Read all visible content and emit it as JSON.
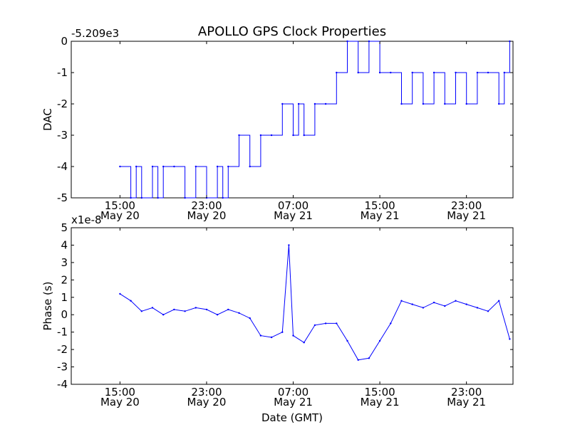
{
  "chart_data": [
    {
      "type": "line",
      "title": "APOLLO GPS Clock Properties",
      "offset_label": "-5.209e3",
      "xlabel": "",
      "ylabel": "DAC",
      "ylim": [
        -5,
        0
      ],
      "yticks": [
        "0",
        "-1",
        "-2",
        "-3",
        "-4",
        "-5"
      ],
      "xticks": [
        {
          "time": "15:00",
          "date": "May 20"
        },
        {
          "time": "23:00",
          "date": "May 20"
        },
        {
          "time": "07:00",
          "date": "May 21"
        },
        {
          "time": "15:00",
          "date": "May 21"
        },
        {
          "time": "23:00",
          "date": "May 21"
        }
      ],
      "x_hours": [
        0,
        1,
        1.5,
        2,
        3,
        3.5,
        4,
        5,
        6,
        7,
        8,
        9,
        9.5,
        10,
        11,
        12,
        13,
        14,
        15,
        16,
        16.5,
        17,
        18,
        19,
        20,
        21,
        22,
        23,
        24,
        25,
        26,
        27,
        28,
        29,
        30,
        31,
        32,
        33,
        34,
        35,
        35.5,
        36
      ],
      "values": [
        -4,
        -5,
        -4,
        -5,
        -4,
        -5,
        -4,
        -4,
        -5,
        -4,
        -5,
        -4,
        -5,
        -4,
        -3,
        -4,
        -3,
        -3,
        -2,
        -3,
        -2,
        -3,
        -2,
        -2,
        -1,
        0,
        -1,
        0,
        -1,
        -1,
        -2,
        -1,
        -2,
        -1,
        -2,
        -1,
        -2,
        -1,
        -1,
        -2,
        -1,
        0
      ],
      "color": "#0000ff"
    },
    {
      "type": "line",
      "title": "",
      "offset_label": "x1e-8",
      "xlabel": "Date (GMT)",
      "ylabel": "Phase (s)",
      "ylim": [
        -4,
        5
      ],
      "yticks": [
        "5",
        "4",
        "3",
        "2",
        "1",
        "0",
        "-1",
        "-2",
        "-3",
        "-4"
      ],
      "xticks": [
        {
          "time": "15:00",
          "date": "May 20"
        },
        {
          "time": "23:00",
          "date": "May 20"
        },
        {
          "time": "07:00",
          "date": "May 21"
        },
        {
          "time": "15:00",
          "date": "May 21"
        },
        {
          "time": "23:00",
          "date": "May 21"
        }
      ],
      "x_hours": [
        0,
        1,
        2,
        3,
        4,
        5,
        6,
        7,
        8,
        9,
        10,
        11,
        12,
        13,
        14,
        15,
        15.6,
        16,
        17,
        18,
        19,
        20,
        21,
        22,
        23,
        24,
        25,
        26,
        27,
        28,
        29,
        30,
        31,
        32,
        33,
        34,
        35,
        36
      ],
      "values": [
        1.2,
        0.8,
        0.2,
        0.4,
        0.0,
        0.3,
        0.2,
        0.4,
        0.3,
        0.0,
        0.3,
        0.1,
        -0.2,
        -1.2,
        -1.3,
        -1.0,
        4.0,
        -1.2,
        -1.6,
        -0.6,
        -0.5,
        -0.5,
        -1.5,
        -2.6,
        -2.5,
        -1.5,
        -0.5,
        0.8,
        0.6,
        0.4,
        0.7,
        0.5,
        0.8,
        0.6,
        0.4,
        0.2,
        0.8,
        -1.4
      ],
      "color": "#0000ff"
    }
  ]
}
